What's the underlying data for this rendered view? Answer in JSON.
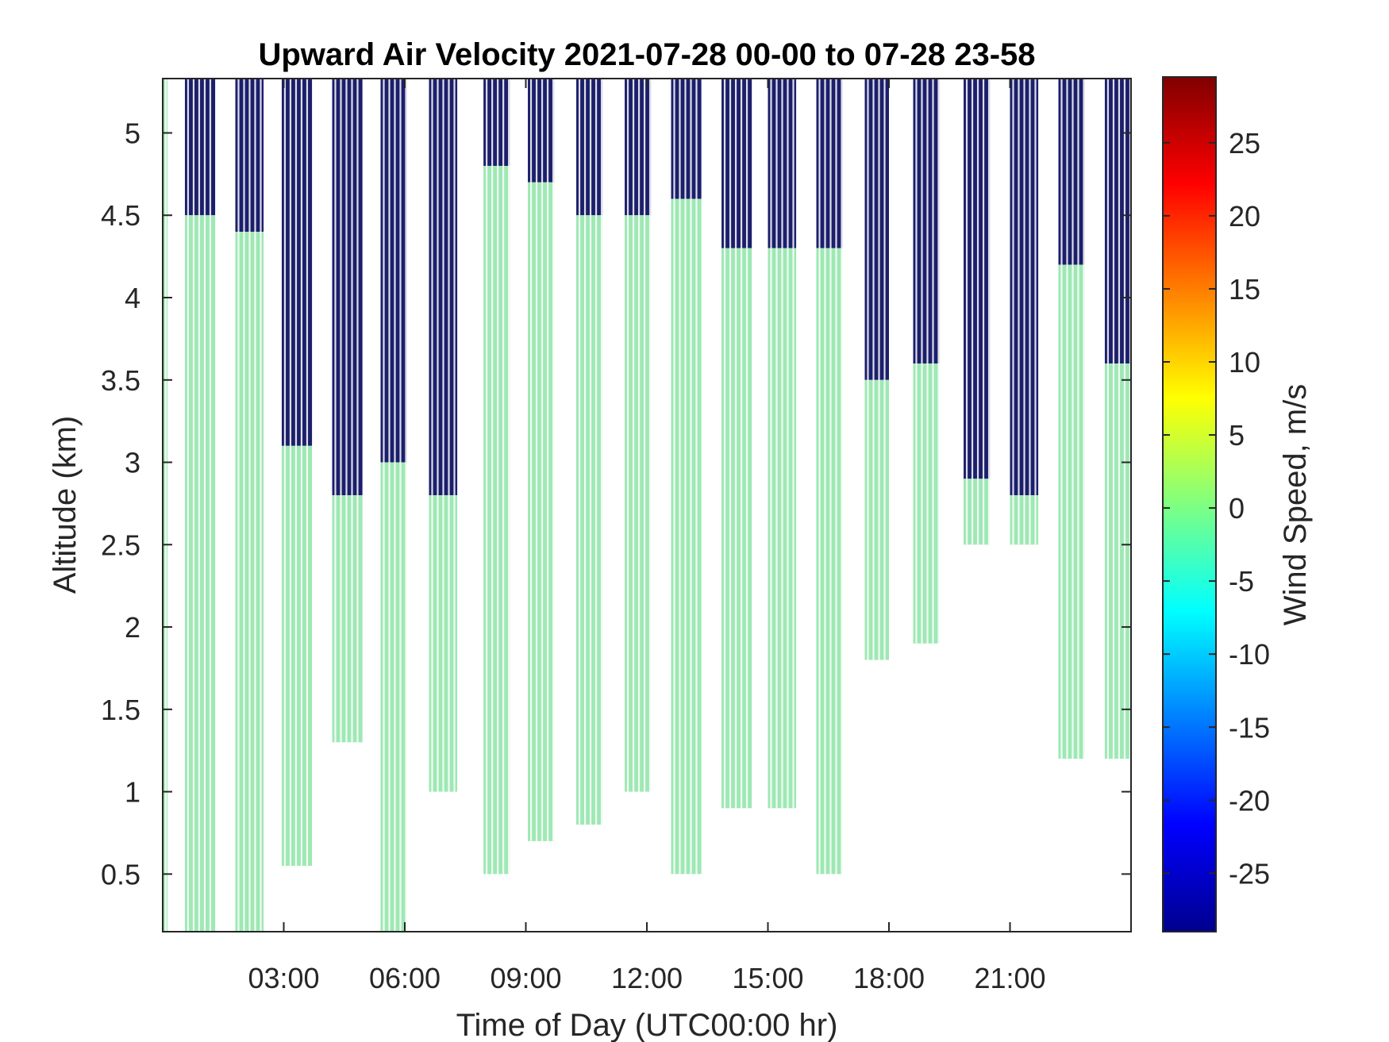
{
  "chart_data": {
    "type": "heatmap",
    "title": "Upward Air Velocity 2021-07-28 00-00 to 07-28 23-58",
    "xlabel": "Time of Day (UTC00:00 hr)",
    "ylabel": "Altitude (km)",
    "colorbar_label": "Wind Speed, m/s",
    "xlim_hours": [
      0,
      24
    ],
    "ylim_km": [
      0.15,
      5.33
    ],
    "clim": [
      -29,
      29.5
    ],
    "x_ticks": [
      {
        "value": 3,
        "label": "03:00"
      },
      {
        "value": 6,
        "label": "06:00"
      },
      {
        "value": 9,
        "label": "09:00"
      },
      {
        "value": 12,
        "label": "12:00"
      },
      {
        "value": 15,
        "label": "15:00"
      },
      {
        "value": 18,
        "label": "18:00"
      },
      {
        "value": 21,
        "label": "21:00"
      }
    ],
    "y_ticks": [
      {
        "value": 0.5,
        "label": "0.5"
      },
      {
        "value": 1,
        "label": "1"
      },
      {
        "value": 1.5,
        "label": "1.5"
      },
      {
        "value": 2,
        "label": "2"
      },
      {
        "value": 2.5,
        "label": "2.5"
      },
      {
        "value": 3,
        "label": "3"
      },
      {
        "value": 3.5,
        "label": "3.5"
      },
      {
        "value": 4,
        "label": "4"
      },
      {
        "value": 4.5,
        "label": "4.5"
      },
      {
        "value": 5,
        "label": "5"
      }
    ],
    "colorbar_ticks": [
      {
        "value": 25,
        "label": "25"
      },
      {
        "value": 20,
        "label": "20"
      },
      {
        "value": 15,
        "label": "15"
      },
      {
        "value": 10,
        "label": "10"
      },
      {
        "value": 5,
        "label": "5"
      },
      {
        "value": 0,
        "label": "0"
      },
      {
        "value": -5,
        "label": "-5"
      },
      {
        "value": -10,
        "label": "-10"
      },
      {
        "value": -15,
        "label": "-15"
      },
      {
        "value": -20,
        "label": "-20"
      },
      {
        "value": -25,
        "label": "-25"
      }
    ],
    "colormap": "jet",
    "colors": {
      "near_zero": "#9ee8b4",
      "no_data_fill": "#1b1f6b",
      "axis": "#262626"
    },
    "segments": [
      {
        "t0": 0.0,
        "t1": 0.12,
        "green_bottom": 0.15,
        "green_top": 5.33,
        "navy_top": 5.33
      },
      {
        "t0": 0.55,
        "t1": 1.3,
        "green_bottom": 0.15,
        "green_top": 4.5,
        "navy_top": 5.33
      },
      {
        "t0": 1.8,
        "t1": 2.5,
        "green_bottom": 0.15,
        "green_top": 4.4,
        "navy_top": 5.33
      },
      {
        "t0": 2.95,
        "t1": 3.7,
        "green_bottom": 0.55,
        "green_top": 3.1,
        "navy_top": 5.33
      },
      {
        "t0": 4.2,
        "t1": 4.95,
        "green_bottom": 1.3,
        "green_top": 2.8,
        "navy_top": 5.33
      },
      {
        "t0": 5.4,
        "t1": 6.05,
        "green_bottom": 0.15,
        "green_top": 3.0,
        "navy_top": 5.33
      },
      {
        "t0": 6.6,
        "t1": 7.3,
        "green_bottom": 1.0,
        "green_top": 2.8,
        "navy_top": 5.33
      },
      {
        "t0": 7.95,
        "t1": 8.6,
        "green_bottom": 0.5,
        "green_top": 4.8,
        "navy_top": 5.33
      },
      {
        "t0": 9.05,
        "t1": 9.7,
        "green_bottom": 0.7,
        "green_top": 4.7,
        "navy_top": 5.33
      },
      {
        "t0": 10.25,
        "t1": 10.9,
        "green_bottom": 0.8,
        "green_top": 4.5,
        "navy_top": 5.33
      },
      {
        "t0": 11.45,
        "t1": 12.1,
        "green_bottom": 1.0,
        "green_top": 4.5,
        "navy_top": 5.33
      },
      {
        "t0": 12.6,
        "t1": 13.35,
        "green_bottom": 0.5,
        "green_top": 4.6,
        "navy_top": 5.33
      },
      {
        "t0": 13.85,
        "t1": 14.6,
        "green_bottom": 0.9,
        "green_top": 4.3,
        "navy_top": 5.33
      },
      {
        "t0": 15.0,
        "t1": 15.7,
        "green_bottom": 0.9,
        "green_top": 4.3,
        "navy_top": 5.33
      },
      {
        "t0": 16.2,
        "t1": 16.85,
        "green_bottom": 0.5,
        "green_top": 4.3,
        "navy_top": 5.33
      },
      {
        "t0": 17.4,
        "t1": 18.0,
        "green_bottom": 1.8,
        "green_top": 3.5,
        "navy_top": 5.33
      },
      {
        "t0": 18.6,
        "t1": 19.25,
        "green_bottom": 1.9,
        "green_top": 3.6,
        "navy_top": 5.33
      },
      {
        "t0": 19.85,
        "t1": 20.5,
        "green_bottom": 2.5,
        "green_top": 2.9,
        "navy_top": 5.33
      },
      {
        "t0": 21.0,
        "t1": 21.7,
        "green_bottom": 2.5,
        "green_top": 2.8,
        "navy_top": 5.33
      },
      {
        "t0": 22.2,
        "t1": 22.85,
        "green_bottom": 1.2,
        "green_top": 4.2,
        "navy_top": 5.33
      },
      {
        "t0": 23.35,
        "t1": 24.0,
        "green_bottom": 1.2,
        "green_top": 3.6,
        "navy_top": 5.33
      }
    ]
  }
}
